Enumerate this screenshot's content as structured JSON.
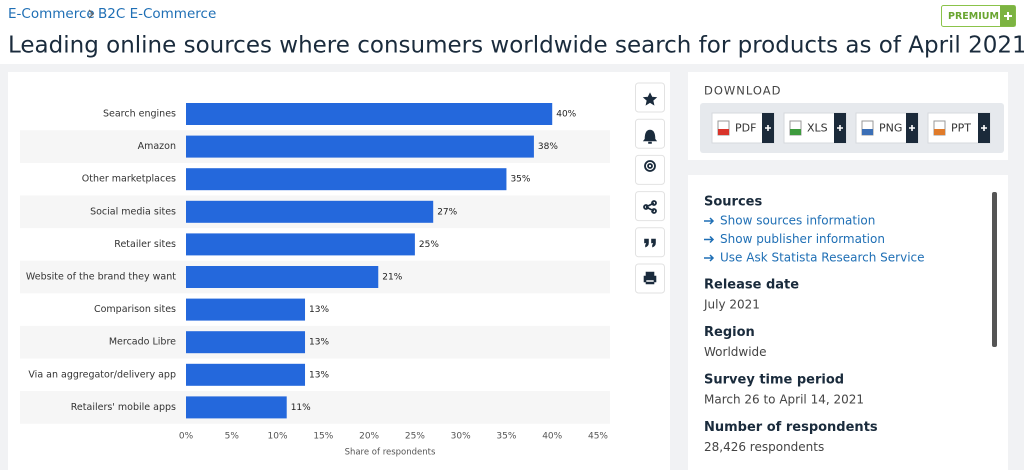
{
  "breadcrumbs": [
    "E-Commerce",
    "B2C E-Commerce"
  ],
  "premium": "PREMIUM",
  "chart_data": {
    "type": "bar",
    "orientation": "horizontal",
    "title": "Leading online sources where consumers worldwide search for products as of April 2021",
    "categories": [
      "Search engines",
      "Amazon",
      "Other marketplaces",
      "Social media sites",
      "Retailer sites",
      "Website of the brand they want",
      "Comparison sites",
      "Mercado Libre",
      "Via an aggregator/delivery app",
      "Retailers' mobile apps"
    ],
    "values": [
      40,
      38,
      35,
      27,
      25,
      21,
      13,
      13,
      13,
      11
    ],
    "value_labels": [
      "40%",
      "38%",
      "35%",
      "27%",
      "25%",
      "21%",
      "13%",
      "13%",
      "13%",
      "11%"
    ],
    "color": "#2468dc",
    "xlim": [
      0,
      45
    ],
    "xticks": [
      {
        "value": 0,
        "label": "0%"
      },
      {
        "value": 5,
        "label": "5%"
      },
      {
        "value": 10,
        "label": "10%"
      },
      {
        "value": 15,
        "label": "15%"
      },
      {
        "value": 20,
        "label": "20%"
      },
      {
        "value": 25,
        "label": "25%"
      },
      {
        "value": 30,
        "label": "30%"
      },
      {
        "value": 35,
        "label": "35%"
      },
      {
        "value": 40,
        "label": "40%"
      },
      {
        "value": 45,
        "label": "45%"
      }
    ],
    "x_label": "Share of respondents",
    "grid": false
  },
  "download": {
    "title": "DOWNLOAD",
    "formats": [
      "PDF",
      "XLS",
      "PNG",
      "PPT"
    ]
  },
  "info": {
    "sources": {
      "title": "Sources",
      "links": [
        "Show sources information",
        "Show publisher information",
        "Use Ask Statista Research Service"
      ]
    },
    "fields": [
      {
        "title": "Release date",
        "value": "July 2021"
      },
      {
        "title": "Region",
        "value": "Worldwide"
      },
      {
        "title": "Survey time period",
        "value": "March 26 to April 14, 2021"
      },
      {
        "title": "Number of respondents",
        "value": "28,426 respondents"
      }
    ]
  }
}
